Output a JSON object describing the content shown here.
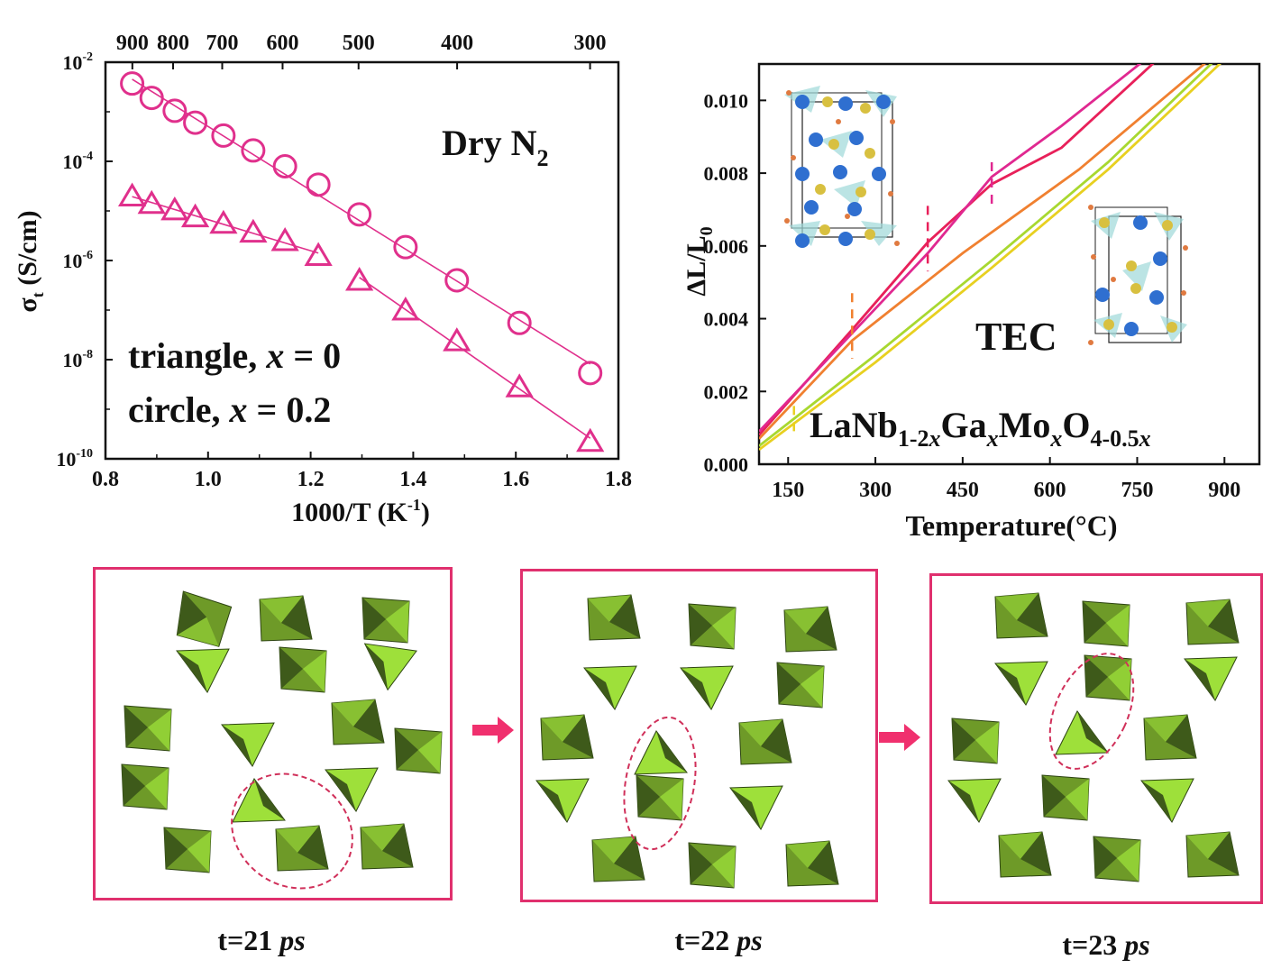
{
  "chart_data": [
    {
      "type": "scatter",
      "title": "",
      "xlabel": "1000/T (K",
      "xlabel_sup": "-1",
      "xlabel_end": ")",
      "ylabel_sigma": "σ",
      "ylabel_sub": "t",
      "ylabel_rest": " (S/cm)",
      "xlim": [
        0.8,
        1.8
      ],
      "ylim_log10": [
        -10,
        -2
      ],
      "x_ticks": [
        "0.8",
        "1.0",
        "1.2",
        "1.4",
        "1.6",
        "1.8"
      ],
      "y_ticks": [
        {
          "base": "10",
          "exp": "-10",
          "v": -10
        },
        {
          "base": "10",
          "exp": "-8",
          "v": -8
        },
        {
          "base": "10",
          "exp": "-6",
          "v": -6
        },
        {
          "base": "10",
          "exp": "-4",
          "v": -4
        },
        {
          "base": "10",
          "exp": "-2",
          "v": -2
        }
      ],
      "top_axis_label_values_C": [
        "900",
        "800",
        "700",
        "600",
        "500",
        "400",
        "300"
      ],
      "annotation_atmosphere": "Dry N",
      "annotation_atmosphere_sub": "2",
      "legend": [
        {
          "label": "triangle, ",
          "var": "x",
          "eq": " = 0"
        },
        {
          "label": "circle, ",
          "var": "x",
          "eq": " = 0.2"
        }
      ],
      "series": [
        {
          "name": "circle, x = 0.2",
          "marker": "circle",
          "x": [
            0.852,
            0.89,
            0.935,
            0.975,
            1.03,
            1.088,
            1.15,
            1.215,
            1.295,
            1.385,
            1.485,
            1.607,
            1.745
          ],
          "log10_y": [
            -2.43,
            -2.72,
            -2.98,
            -3.22,
            -3.48,
            -3.78,
            -4.1,
            -4.47,
            -5.07,
            -5.73,
            -6.4,
            -7.26,
            -8.27
          ]
        },
        {
          "name": "triangle, x = 0",
          "marker": "triangle",
          "x": [
            0.852,
            0.89,
            0.935,
            0.975,
            1.03,
            1.088,
            1.15,
            1.215,
            1.295,
            1.385,
            1.485,
            1.607,
            1.745
          ],
          "log10_y": [
            -4.7,
            -4.85,
            -4.98,
            -5.12,
            -5.25,
            -5.43,
            -5.6,
            -5.9,
            -6.4,
            -7.0,
            -7.62,
            -8.55,
            -9.65
          ]
        }
      ],
      "colors": {
        "series": "#e0308c"
      }
    },
    {
      "type": "line",
      "title": "",
      "xlabel": "Temperature(°C)",
      "ylabel": "ΔL/L",
      "ylabel_sub": "0",
      "xlim": [
        100,
        960
      ],
      "ylim": [
        0.0,
        0.011
      ],
      "x_ticks": [
        "150",
        "300",
        "450",
        "600",
        "750",
        "900"
      ],
      "y_ticks": [
        "0.000",
        "0.002",
        "0.004",
        "0.006",
        "0.008",
        "0.010"
      ],
      "annotation": "TEC",
      "formula": {
        "a": "LaNb",
        "a_sub": "1-2",
        "x1": "x",
        "b": "Ga",
        "x2": "x",
        "c": "Mo",
        "x3": "x",
        "d": "O",
        "d_sub": "4-0.5",
        "x4": "x"
      },
      "series": [
        {
          "name": "crimson",
          "color": "#e8205a",
          "x": [
            100,
            260,
            390,
            500,
            620,
            790
          ],
          "y": [
            0.0008,
            0.0037,
            0.0061,
            0.0077,
            0.0087,
            0.0112
          ]
        },
        {
          "name": "magenta",
          "color": "#e02890",
          "x": [
            100,
            260,
            390,
            500,
            620,
            770
          ],
          "y": [
            0.0009,
            0.0036,
            0.0058,
            0.0079,
            0.0093,
            0.0112
          ]
        },
        {
          "name": "orange",
          "color": "#f08030",
          "x": [
            100,
            260,
            450,
            650,
            880
          ],
          "y": [
            0.0007,
            0.0034,
            0.0058,
            0.0081,
            0.0112
          ]
        },
        {
          "name": "green",
          "color": "#a8d830",
          "x": [
            100,
            300,
            500,
            700,
            890
          ],
          "y": [
            0.0005,
            0.003,
            0.0056,
            0.0083,
            0.0112
          ]
        },
        {
          "name": "yellow",
          "color": "#e8d020",
          "x": [
            100,
            300,
            500,
            700,
            905
          ],
          "y": [
            0.0004,
            0.0028,
            0.0054,
            0.0081,
            0.0112
          ]
        }
      ],
      "transition_markers": [
        {
          "x": 160,
          "color": "#e8d020"
        },
        {
          "x": 260,
          "color": "#f08030"
        },
        {
          "x": 390,
          "color": "#e8205a"
        },
        {
          "x": 500,
          "color": "#e02890"
        }
      ]
    }
  ],
  "snapshots": [
    {
      "caption_prefix": "t=21 ",
      "caption_unit": "ps"
    },
    {
      "caption_prefix": "t=22 ",
      "caption_unit": "ps"
    },
    {
      "caption_prefix": "t=23 ",
      "caption_unit": "ps"
    }
  ],
  "colors": {
    "frame": "#e0306e",
    "arrow": "#f0306e",
    "dark_green": "#3e5a1a",
    "mid_green": "#6e9a28",
    "light_green": "#9ee03a"
  }
}
